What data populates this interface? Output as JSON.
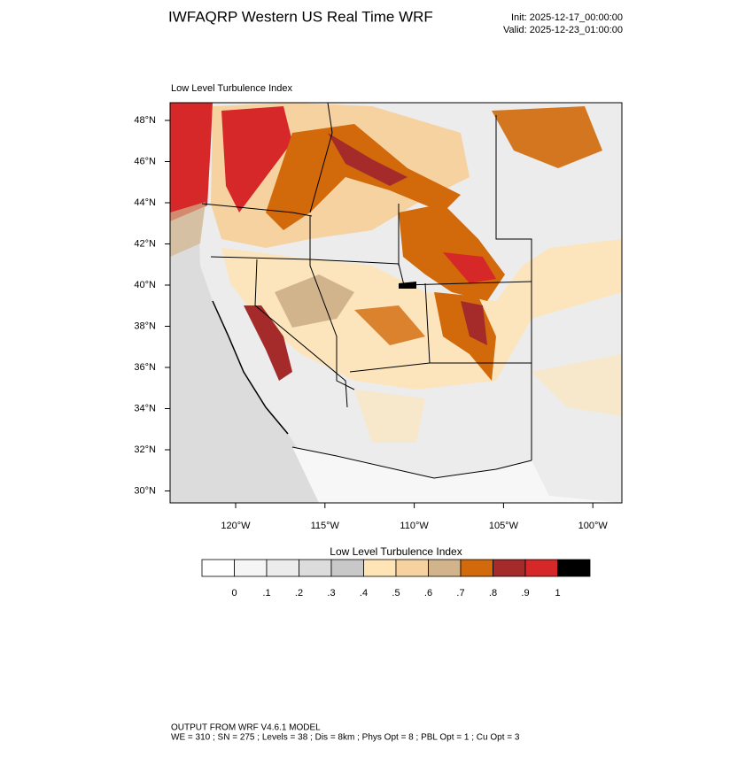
{
  "header": {
    "title": "IWFAQRP Western US Real Time WRF",
    "init": "Init: 2025-12-17_00:00:00",
    "valid": "Valid: 2025-12-23_01:00:00"
  },
  "map": {
    "title": "Low Level Turbulence Index",
    "lat_labels": [
      "48°N",
      "46°N",
      "44°N",
      "42°N",
      "40°N",
      "38°N",
      "36°N",
      "34°N",
      "32°N",
      "30°N"
    ],
    "lon_labels": [
      "120°W",
      "115°W",
      "110°W",
      "105°W",
      "100°W"
    ]
  },
  "colorbar": {
    "title": "Low Level Turbulence Index",
    "colors": [
      "#ffffff",
      "#f5f5f5",
      "#ececec",
      "#dcdcdc",
      "#c8c8c8",
      "#ffe4b5",
      "#f5d2a0",
      "#d2b48c",
      "#d2690a",
      "#a52a2a",
      "#d62828",
      "#000000"
    ],
    "labels": [
      "0",
      ".1",
      ".2",
      ".3",
      ".4",
      ".5",
      ".6",
      ".7",
      ".8",
      ".9",
      "1"
    ]
  },
  "footer": {
    "line1": "OUTPUT FROM WRF V4.6.1 MODEL",
    "line2": "WE = 310 ; SN = 275 ; Levels = 38 ; Dis = 8km ; Phys Opt = 8 ; PBL Opt = 1 ; Cu Opt = 3"
  }
}
